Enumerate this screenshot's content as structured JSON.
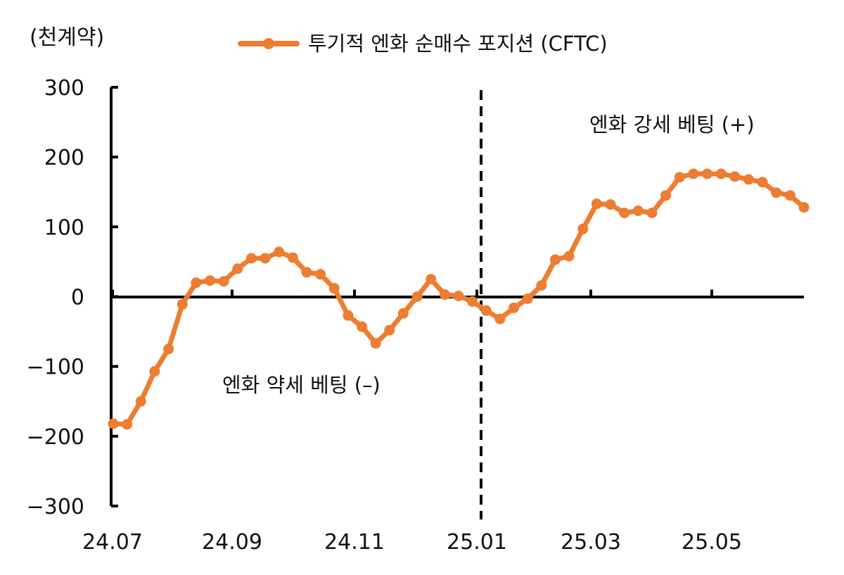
{
  "chart_data": {
    "type": "line",
    "ylabel": "(천계약)",
    "ylim": [
      -300,
      300
    ],
    "yticks": [
      300,
      200,
      100,
      0,
      -100,
      -200,
      -300
    ],
    "ytick_labels": [
      "300",
      "200",
      "100",
      "0",
      "−100",
      "−200",
      "−300"
    ],
    "xtick_labels": [
      "24.07",
      "24.09",
      "24.11",
      "25.01",
      "25.03",
      "25.05"
    ],
    "series": [
      {
        "name": "투기적 엔화 순매수 포지션 (CFTC)",
        "color": "#ed7d31",
        "values": [
          -182,
          -183,
          -150,
          -107,
          -75,
          -11,
          20,
          23,
          22,
          40,
          55,
          55,
          64,
          56,
          35,
          32,
          12,
          -27,
          -43,
          -67,
          -48,
          -24,
          0,
          25,
          3,
          1,
          -7,
          -20,
          -32,
          -16,
          -3,
          16,
          53,
          58,
          97,
          133,
          132,
          120,
          123,
          120,
          145,
          171,
          176,
          176,
          176,
          172,
          168,
          164,
          149,
          145,
          128
        ]
      }
    ],
    "vline": {
      "label_before": "엔화 약세 베팅 (–)",
      "label_after": "엔화 강세 베팅 (+)",
      "at_tick": "25.01"
    },
    "legend_position": "top-center",
    "grid": false
  }
}
